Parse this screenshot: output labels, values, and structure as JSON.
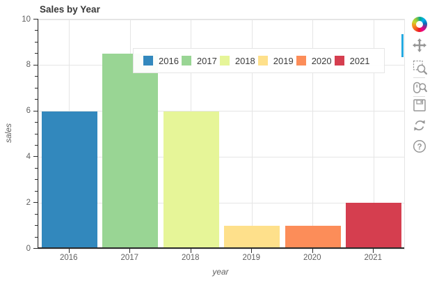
{
  "figure": {
    "title": "Sales by Year"
  },
  "chart_data": {
    "type": "bar",
    "title": "Sales by Year",
    "xlabel": "year",
    "ylabel": "sales",
    "categories": [
      "2016",
      "2017",
      "2018",
      "2019",
      "2020",
      "2021"
    ],
    "values": [
      6,
      8.5,
      6,
      1,
      1,
      2
    ],
    "ylim": [
      0,
      10
    ],
    "yticks": [
      0,
      2,
      4,
      6,
      8,
      10
    ],
    "y_minor_tick_step": 0.5,
    "grid": true,
    "legend_position": "top-center",
    "palette": [
      "#3288bd",
      "#99d594",
      "#e6f598",
      "#fee08b",
      "#fc8d59",
      "#d53e4f"
    ],
    "legend_items": [
      {
        "label": "2016",
        "color": "#3288bd"
      },
      {
        "label": "2017",
        "color": "#99d594"
      },
      {
        "label": "2018",
        "color": "#e6f598"
      },
      {
        "label": "2019",
        "color": "#fee08b"
      },
      {
        "label": "2020",
        "color": "#fc8d59"
      },
      {
        "label": "2021",
        "color": "#d53e4f"
      }
    ]
  },
  "toolbar": {
    "logo_icon": "bokeh-logo-icon",
    "orientation": "vertical",
    "active_color": "#26aae1",
    "tools": [
      {
        "icon": "pan-icon",
        "active": true,
        "divider_after": false
      },
      {
        "icon": "box-zoom-icon",
        "active": false,
        "divider_after": true
      },
      {
        "icon": "wheel-zoom-icon",
        "active": false,
        "divider_after": true
      },
      {
        "icon": "save-icon",
        "active": false,
        "divider_after": false
      },
      {
        "icon": "reset-icon",
        "active": false,
        "divider_after": false
      },
      {
        "icon": "help-icon",
        "active": false,
        "divider_after": false
      }
    ]
  },
  "theme": {
    "grid_color": "#e5e5e5",
    "axis_line_color": "#2b2b2b",
    "tick_label_color": "#5f5f5f",
    "axis_label_color": "#5f5f5f",
    "title_color": "#383838",
    "legend_border_color": "#e5e5e5",
    "icon_color": "#969696"
  }
}
